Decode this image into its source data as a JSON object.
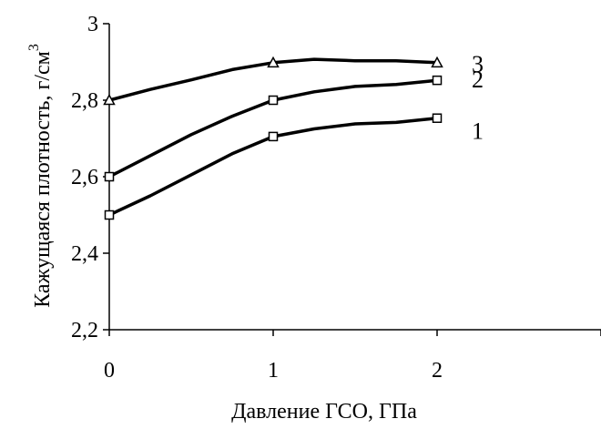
{
  "chart_data": {
    "type": "line",
    "title": "",
    "xlabel": "Давление ГСО, ГПа",
    "ylabel": "Кажущаяся плотность, г/см",
    "ylabel_superscript": "3",
    "xlim": [
      0,
      3
    ],
    "ylim": [
      2.2,
      3.0
    ],
    "x_ticks": [
      0,
      1,
      2
    ],
    "x_tick_labels": [
      "0",
      "1",
      "2"
    ],
    "y_ticks": [
      2.2,
      2.4,
      2.6,
      2.8,
      3.0
    ],
    "y_tick_labels": [
      "2,2",
      "2,4",
      "2,6",
      "2,8",
      "3"
    ],
    "grid": false,
    "legend": "none",
    "line_color": "#000000",
    "series": [
      {
        "label": "1",
        "marker": "square",
        "x": [
          0,
          0.25,
          0.5,
          0.75,
          1,
          1.25,
          1.5,
          1.75,
          2
        ],
        "y": [
          2.5,
          2.55,
          2.605,
          2.66,
          2.705,
          2.725,
          2.738,
          2.742,
          2.753
        ],
        "marker_x": [
          0,
          1,
          2
        ],
        "marker_y": [
          2.5,
          2.705,
          2.753
        ]
      },
      {
        "label": "2",
        "marker": "square",
        "x": [
          0,
          0.25,
          0.5,
          0.75,
          1,
          1.25,
          1.5,
          1.75,
          2
        ],
        "y": [
          2.6,
          2.655,
          2.71,
          2.758,
          2.8,
          2.822,
          2.836,
          2.841,
          2.852
        ],
        "marker_x": [
          0,
          1,
          2
        ],
        "marker_y": [
          2.6,
          2.8,
          2.852
        ]
      },
      {
        "label": "3",
        "marker": "triangle",
        "x": [
          0,
          0.25,
          0.5,
          0.75,
          1,
          1.25,
          1.5,
          1.75,
          2
        ],
        "y": [
          2.8,
          2.828,
          2.853,
          2.88,
          2.898,
          2.907,
          2.903,
          2.903,
          2.898
        ],
        "marker_x": [
          0,
          1,
          2
        ],
        "marker_y": [
          2.8,
          2.898,
          2.898
        ]
      }
    ]
  }
}
